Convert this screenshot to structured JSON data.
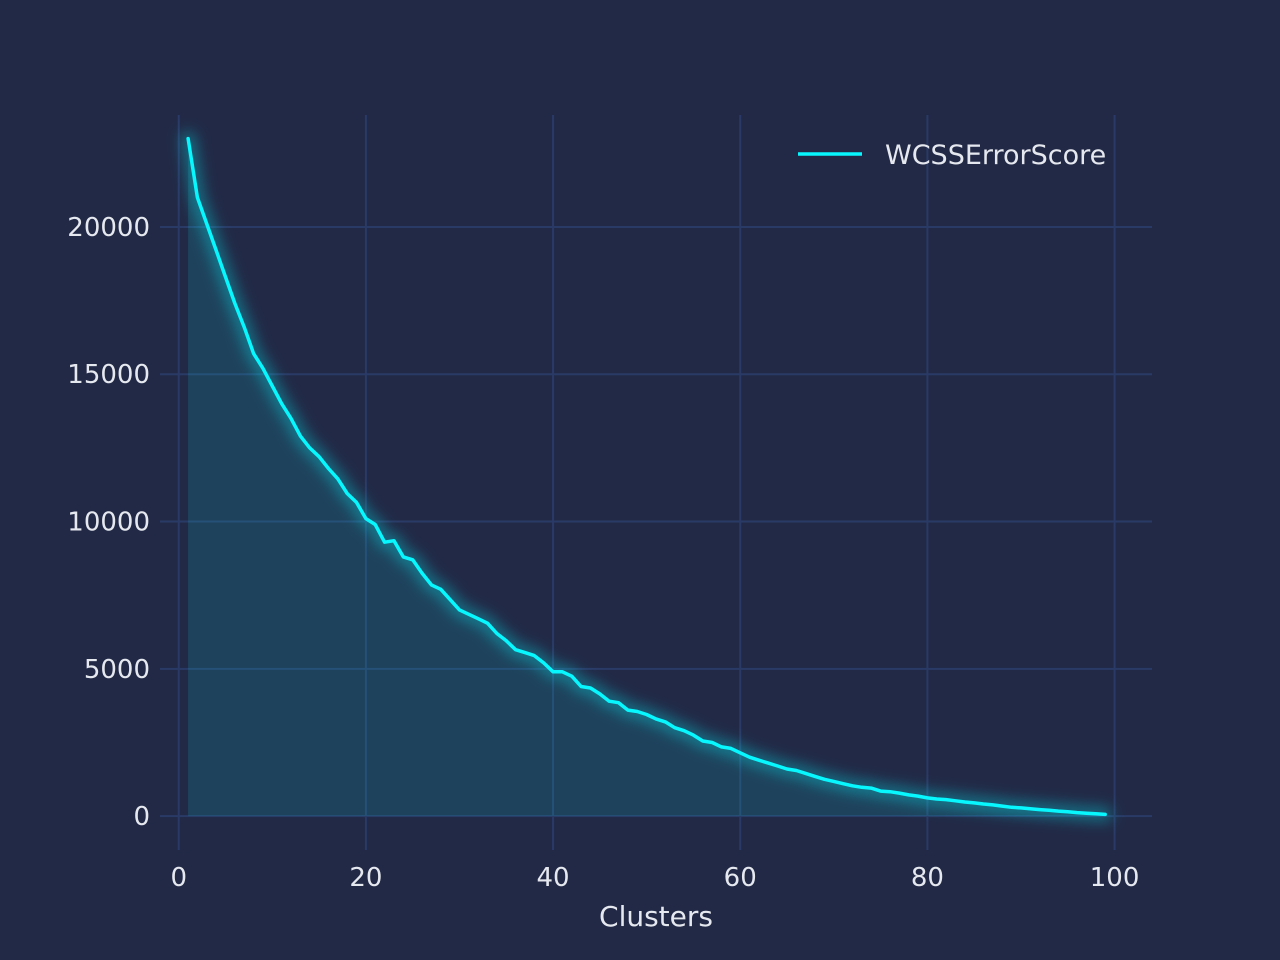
{
  "chart_data": {
    "type": "area",
    "title": "",
    "xlabel": "Clusters",
    "ylabel": "",
    "xlim": [
      -2,
      104
    ],
    "ylim": [
      -1150,
      23800
    ],
    "xticks": [
      0,
      20,
      40,
      60,
      80,
      100
    ],
    "yticks": [
      0,
      5000,
      10000,
      15000,
      20000
    ],
    "grid": true,
    "legend_position": "top-right",
    "colors": {
      "background": "#212946",
      "line": "#08F7FE",
      "fill": "#08F7FE",
      "grid": "#2A3A66",
      "text": "#E6E8EF"
    },
    "series": [
      {
        "name": "WCSSErrorScore",
        "x": [
          1,
          2,
          3,
          4,
          5,
          6,
          7,
          8,
          9,
          10,
          11,
          12,
          13,
          14,
          15,
          16,
          17,
          18,
          19,
          20,
          21,
          22,
          23,
          24,
          25,
          26,
          27,
          28,
          29,
          30,
          31,
          32,
          33,
          34,
          35,
          36,
          37,
          38,
          39,
          40,
          41,
          42,
          43,
          44,
          45,
          46,
          47,
          48,
          49,
          50,
          51,
          52,
          53,
          54,
          55,
          56,
          57,
          58,
          59,
          60,
          61,
          62,
          63,
          64,
          65,
          66,
          67,
          68,
          69,
          70,
          71,
          72,
          73,
          74,
          75,
          76,
          77,
          78,
          79,
          80,
          81,
          82,
          83,
          84,
          85,
          86,
          87,
          88,
          89,
          90,
          91,
          92,
          93,
          94,
          95,
          96,
          97,
          98,
          99
        ],
        "values": [
          23000,
          21000,
          20100,
          19200,
          18300,
          17400,
          16600,
          15700,
          15200,
          14600,
          14000,
          13500,
          12900,
          12500,
          12200,
          11800,
          11450,
          10950,
          10650,
          10100,
          9900,
          9300,
          9350,
          8800,
          8700,
          8250,
          7850,
          7700,
          7350,
          7000,
          6850,
          6700,
          6550,
          6200,
          5950,
          5650,
          5550,
          5450,
          5200,
          4900,
          4900,
          4750,
          4400,
          4350,
          4150,
          3900,
          3850,
          3600,
          3550,
          3450,
          3300,
          3200,
          3000,
          2900,
          2750,
          2550,
          2500,
          2350,
          2300,
          2150,
          2000,
          1900,
          1800,
          1700,
          1600,
          1550,
          1450,
          1350,
          1250,
          1180,
          1100,
          1030,
          980,
          950,
          850,
          830,
          780,
          720,
          680,
          620,
          580,
          560,
          520,
          480,
          450,
          410,
          380,
          340,
          300,
          280,
          250,
          220,
          200,
          170,
          150,
          120,
          100,
          80,
          60
        ]
      }
    ]
  }
}
